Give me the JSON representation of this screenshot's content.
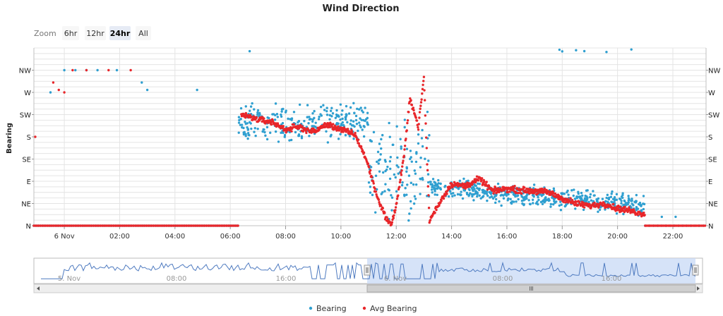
{
  "chart_data": {
    "type": "scatter",
    "title": "Wind Direction",
    "ylabel": "Bearing",
    "y_axis": {
      "categories": [
        "N",
        "NE",
        "E",
        "SE",
        "S",
        "SW",
        "W",
        "NW"
      ],
      "degrees": [
        0,
        45,
        90,
        135,
        180,
        225,
        270,
        315
      ],
      "range": [
        0,
        360
      ]
    },
    "x_axis": {
      "tick_labels": [
        "6 Nov",
        "02:00",
        "04:00",
        "06:00",
        "08:00",
        "10:00",
        "12:00",
        "14:00",
        "16:00",
        "18:00",
        "20:00",
        "22:00"
      ],
      "tick_hours": [
        0,
        2,
        4,
        6,
        8,
        10,
        12,
        14,
        16,
        18,
        20,
        22
      ],
      "range_hours": [
        -1.1,
        23.2
      ]
    },
    "grid": true,
    "legend_position": "bottom-center",
    "zoom": {
      "label": "Zoom",
      "buttons": [
        "6hr",
        "12hr",
        "24hr",
        "All"
      ],
      "selected": "24hr"
    },
    "navigator": {
      "tick_labels": [
        "5. Nov",
        "08:00",
        "16:00",
        "6. Nov",
        "08:00",
        "16:00"
      ],
      "selected_range": "6 Nov 00:00 - 23:59"
    },
    "series": [
      {
        "name": "Bearing",
        "color": "#2f9fd0",
        "segments": [
          {
            "from": -1.1,
            "to": 6.3,
            "base": 0,
            "noise": 0,
            "density": 0,
            "flat": true
          },
          {
            "from": 6.3,
            "to": 11.0,
            "base": 210,
            "noise": 40,
            "count": 260
          },
          {
            "from": 11.0,
            "to": 13.2,
            "base": 120,
            "noise": 110,
            "count": 120
          },
          {
            "from": 13.2,
            "to": 21.0,
            "base": 55,
            "noise": 22,
            "count": 520
          }
        ],
        "early_points": [
          {
            "x": -0.5,
            "y": 270
          },
          {
            "x": 0.0,
            "y": 315
          },
          {
            "x": 0.4,
            "y": 315
          },
          {
            "x": 0.8,
            "y": 315
          },
          {
            "x": 1.2,
            "y": 315
          },
          {
            "x": 1.9,
            "y": 315
          },
          {
            "x": 2.8,
            "y": 290
          },
          {
            "x": 3.0,
            "y": 275
          },
          {
            "x": 4.8,
            "y": 275
          }
        ],
        "late_points": [
          {
            "x": 22.1,
            "y": 18
          },
          {
            "x": 21.6,
            "y": 18
          }
        ]
      },
      {
        "name": "Avg Bearing",
        "color": "#e8262a",
        "avg_path": [
          {
            "x": 6.4,
            "y": 225
          },
          {
            "x": 7.0,
            "y": 215
          },
          {
            "x": 7.5,
            "y": 210
          },
          {
            "x": 8.0,
            "y": 195
          },
          {
            "x": 8.5,
            "y": 200
          },
          {
            "x": 9.0,
            "y": 190
          },
          {
            "x": 9.5,
            "y": 205
          },
          {
            "x": 10.0,
            "y": 195
          },
          {
            "x": 10.5,
            "y": 185
          },
          {
            "x": 10.8,
            "y": 150
          },
          {
            "x": 11.0,
            "y": 120
          },
          {
            "x": 11.3,
            "y": 60
          },
          {
            "x": 11.6,
            "y": 20
          },
          {
            "x": 11.8,
            "y": 0
          },
          {
            "x": 12.0,
            "y": 40
          },
          {
            "x": 12.3,
            "y": 150
          },
          {
            "x": 12.5,
            "y": 260
          },
          {
            "x": 12.8,
            "y": 200
          },
          {
            "x": 13.0,
            "y": 300
          },
          {
            "x": 13.2,
            "y": 10
          },
          {
            "x": 13.6,
            "y": 50
          },
          {
            "x": 14.0,
            "y": 85
          },
          {
            "x": 14.5,
            "y": 80
          },
          {
            "x": 15.0,
            "y": 95
          },
          {
            "x": 15.5,
            "y": 70
          },
          {
            "x": 16.0,
            "y": 75
          },
          {
            "x": 16.5,
            "y": 72
          },
          {
            "x": 17.0,
            "y": 70
          },
          {
            "x": 17.5,
            "y": 68
          },
          {
            "x": 18.0,
            "y": 55
          },
          {
            "x": 18.5,
            "y": 45
          },
          {
            "x": 19.0,
            "y": 40
          },
          {
            "x": 19.5,
            "y": 45
          },
          {
            "x": 20.0,
            "y": 35
          },
          {
            "x": 20.5,
            "y": 30
          },
          {
            "x": 20.8,
            "y": 25
          },
          {
            "x": 21.0,
            "y": 25
          }
        ],
        "early_points": [
          {
            "x": -1.05,
            "y": 180
          },
          {
            "x": -0.4,
            "y": 290
          },
          {
            "x": -0.2,
            "y": 275
          },
          {
            "x": 0.0,
            "y": 270
          },
          {
            "x": 0.3,
            "y": 315
          },
          {
            "x": 0.8,
            "y": 315
          },
          {
            "x": 1.6,
            "y": 315
          },
          {
            "x": 2.4,
            "y": 315
          }
        ],
        "flat_from": -1.1,
        "flat_to": 6.3,
        "flat_late_from": 21.0
      }
    ]
  }
}
